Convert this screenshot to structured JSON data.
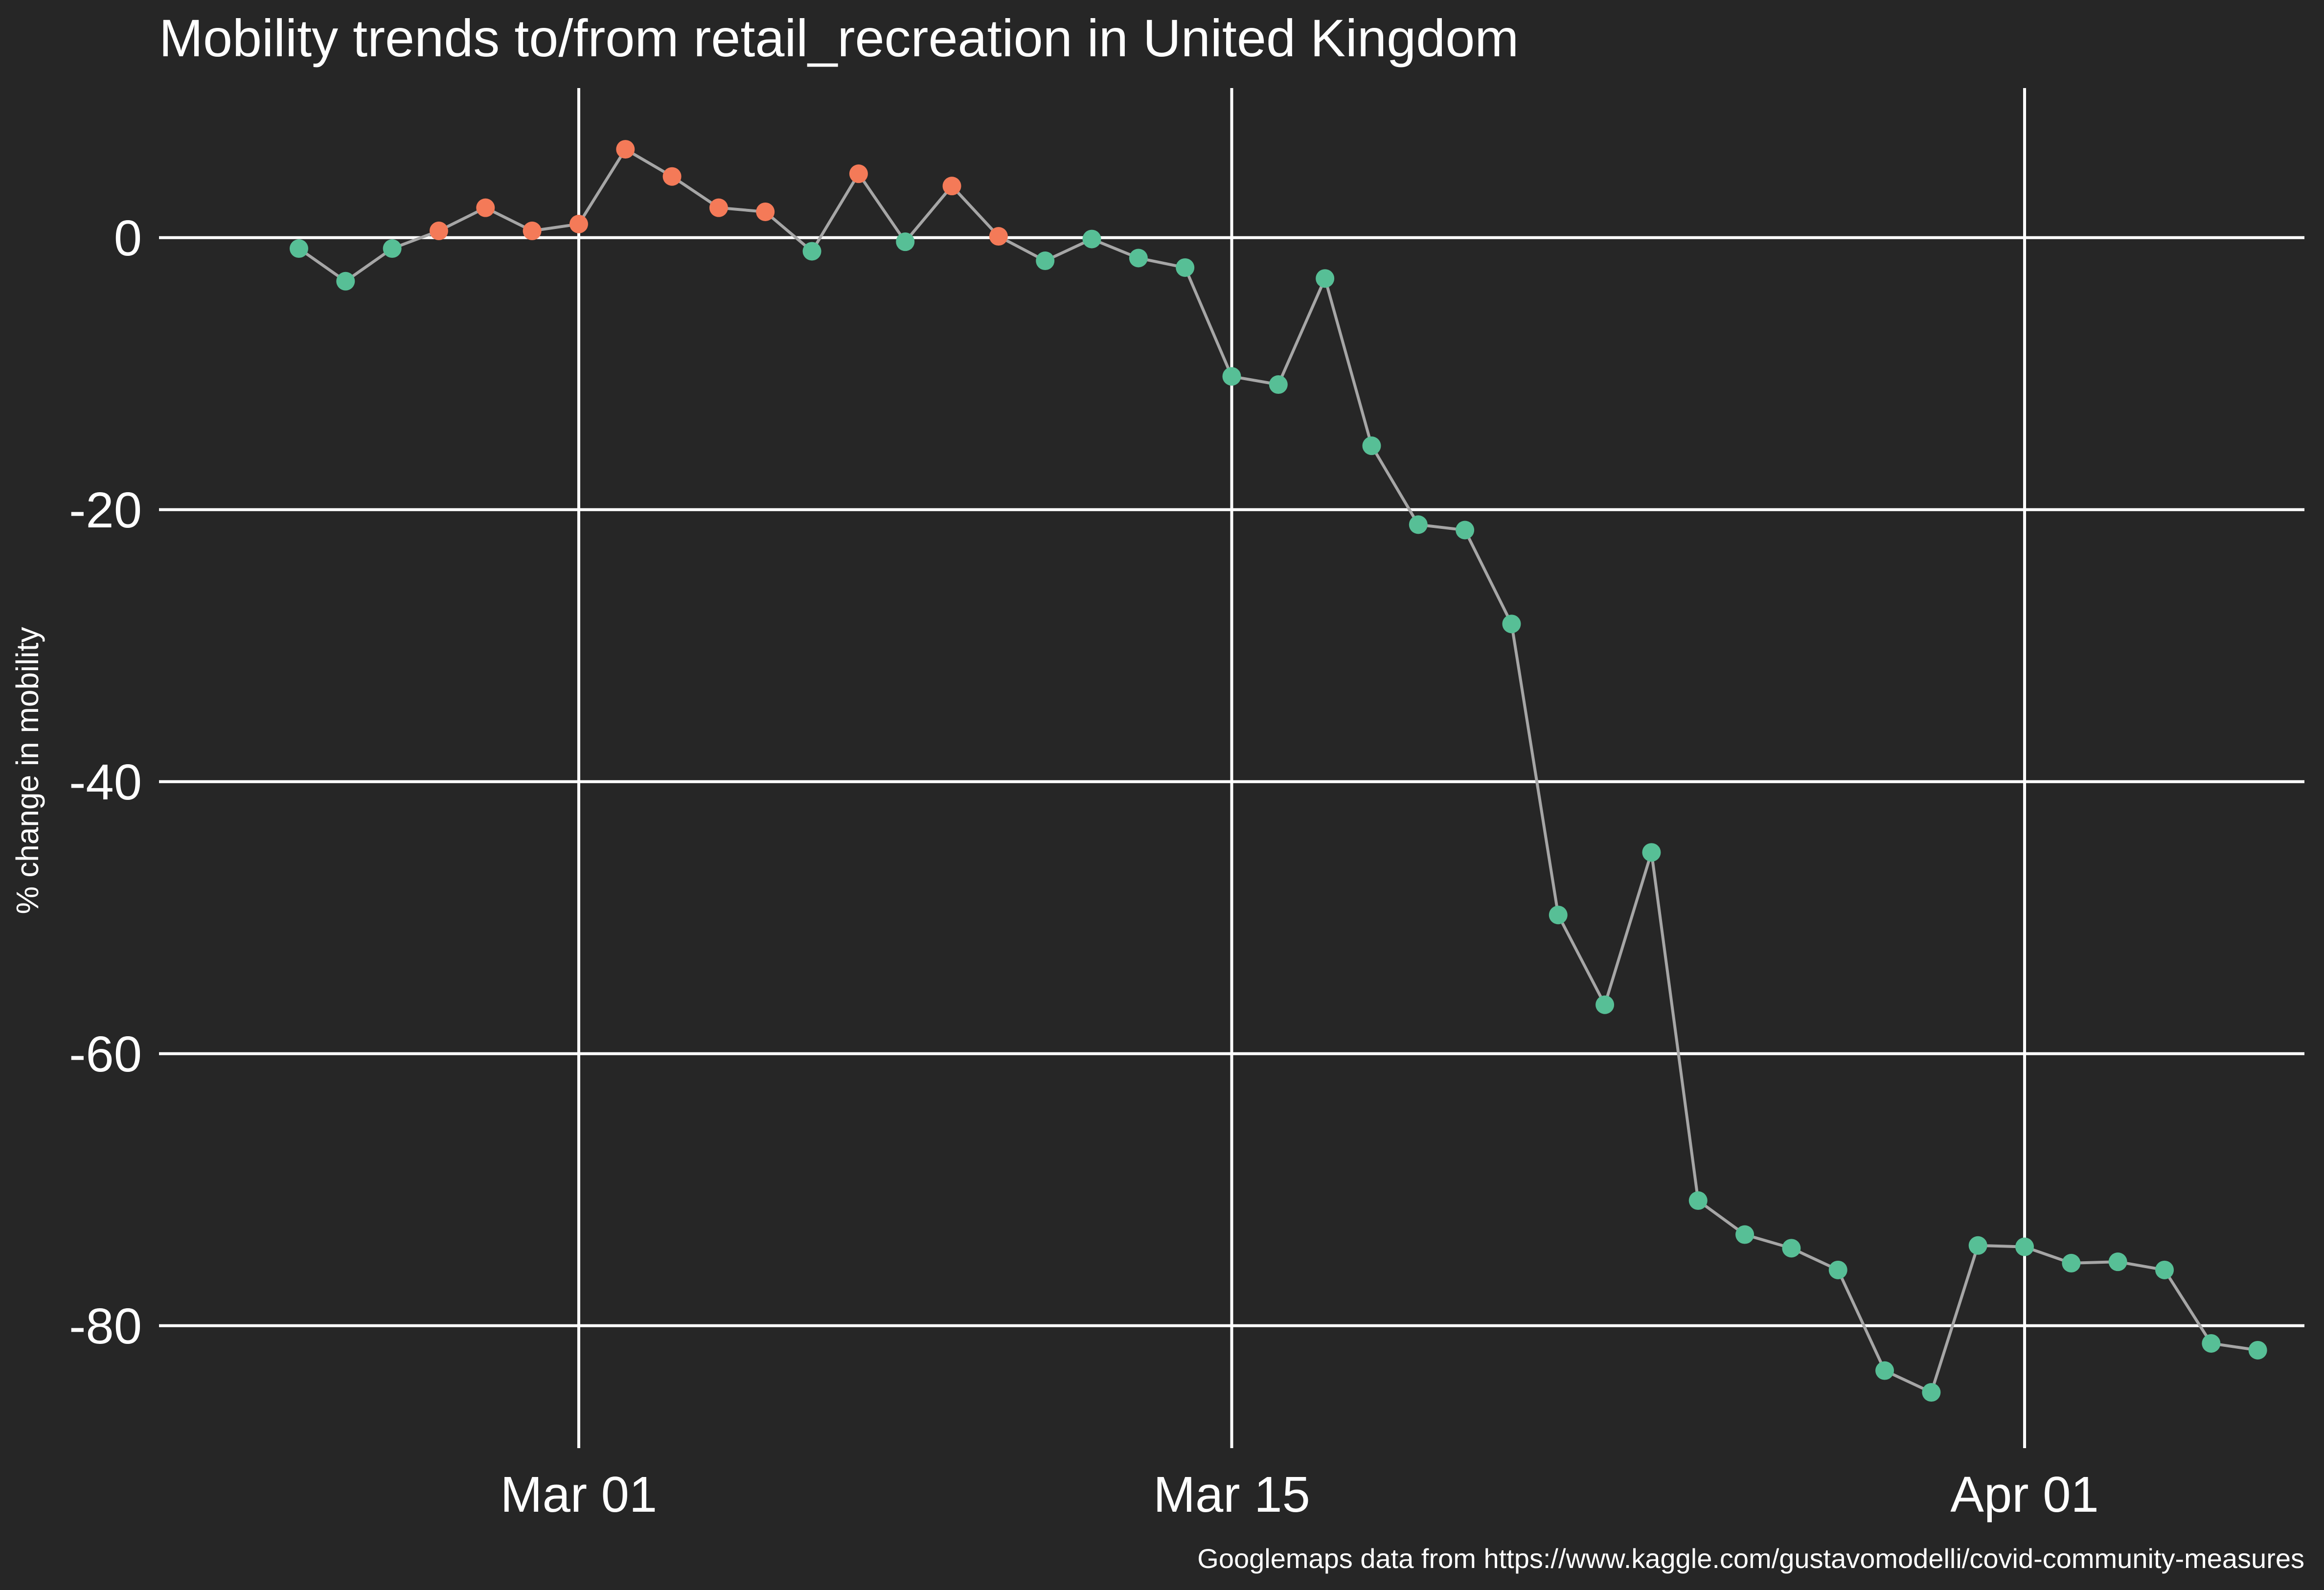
{
  "chart_data": {
    "type": "scatter",
    "title": "Mobility trends to/from retail_recreation in United Kingdom",
    "ylabel": "% change in mobility",
    "xlabel": "",
    "caption": "Googlemaps data from https://www.kaggle.com/gustavomodelli/covid-community-measures",
    "x_ticks": [
      {
        "date": "2020-03-01",
        "label": "Mar 01"
      },
      {
        "date": "2020-03-15",
        "label": "Mar 15"
      },
      {
        "date": "2020-04-01",
        "label": "Apr 01"
      }
    ],
    "y_ticks": [
      0,
      -20,
      -40,
      -60,
      -80
    ],
    "y_tick_labels": [
      "0",
      "-20",
      "-40",
      "-60",
      "-80"
    ],
    "xlim": [
      "2020-02-21",
      "2020-04-07"
    ],
    "ylim": [
      -89,
      11
    ],
    "grid": true,
    "legend": "none",
    "colors": {
      "background": "#262626",
      "line": "#a6a6a6",
      "positive_point": "#f47a58",
      "negative_point": "#57bf96",
      "grid": "#ffffff",
      "text": "#ffffff"
    },
    "points": [
      {
        "date": "2020-02-24",
        "value": -0.8
      },
      {
        "date": "2020-02-25",
        "value": -3.2
      },
      {
        "date": "2020-02-26",
        "value": -0.8
      },
      {
        "date": "2020-02-27",
        "value": 0.5
      },
      {
        "date": "2020-02-28",
        "value": 2.2
      },
      {
        "date": "2020-02-29",
        "value": 0.5
      },
      {
        "date": "2020-03-01",
        "value": 1.0
      },
      {
        "date": "2020-03-02",
        "value": 6.5
      },
      {
        "date": "2020-03-03",
        "value": 4.5
      },
      {
        "date": "2020-03-04",
        "value": 2.2
      },
      {
        "date": "2020-03-05",
        "value": 1.9
      },
      {
        "date": "2020-03-06",
        "value": -1.0
      },
      {
        "date": "2020-03-07",
        "value": 4.7
      },
      {
        "date": "2020-03-08",
        "value": -0.3
      },
      {
        "date": "2020-03-09",
        "value": 3.8
      },
      {
        "date": "2020-03-10",
        "value": 0.1
      },
      {
        "date": "2020-03-11",
        "value": -1.7
      },
      {
        "date": "2020-03-12",
        "value": -0.1
      },
      {
        "date": "2020-03-13",
        "value": -1.5
      },
      {
        "date": "2020-03-14",
        "value": -2.2
      },
      {
        "date": "2020-03-15",
        "value": -10.2
      },
      {
        "date": "2020-03-16",
        "value": -10.8
      },
      {
        "date": "2020-03-17",
        "value": -3.0
      },
      {
        "date": "2020-03-18",
        "value": -15.3
      },
      {
        "date": "2020-03-19",
        "value": -21.1
      },
      {
        "date": "2020-03-20",
        "value": -21.5
      },
      {
        "date": "2020-03-21",
        "value": -28.4
      },
      {
        "date": "2020-03-22",
        "value": -49.8
      },
      {
        "date": "2020-03-23",
        "value": -56.4
      },
      {
        "date": "2020-03-24",
        "value": -45.2
      },
      {
        "date": "2020-03-25",
        "value": -70.8
      },
      {
        "date": "2020-03-26",
        "value": -73.3
      },
      {
        "date": "2020-03-27",
        "value": -74.3
      },
      {
        "date": "2020-03-28",
        "value": -75.9
      },
      {
        "date": "2020-03-29",
        "value": -83.3
      },
      {
        "date": "2020-03-30",
        "value": -84.9
      },
      {
        "date": "2020-03-31",
        "value": -74.1
      },
      {
        "date": "2020-04-01",
        "value": -74.2
      },
      {
        "date": "2020-04-02",
        "value": -75.4
      },
      {
        "date": "2020-04-03",
        "value": -75.3
      },
      {
        "date": "2020-04-04",
        "value": -75.9
      },
      {
        "date": "2020-04-05",
        "value": -81.3
      },
      {
        "date": "2020-04-06",
        "value": -81.8
      }
    ]
  }
}
